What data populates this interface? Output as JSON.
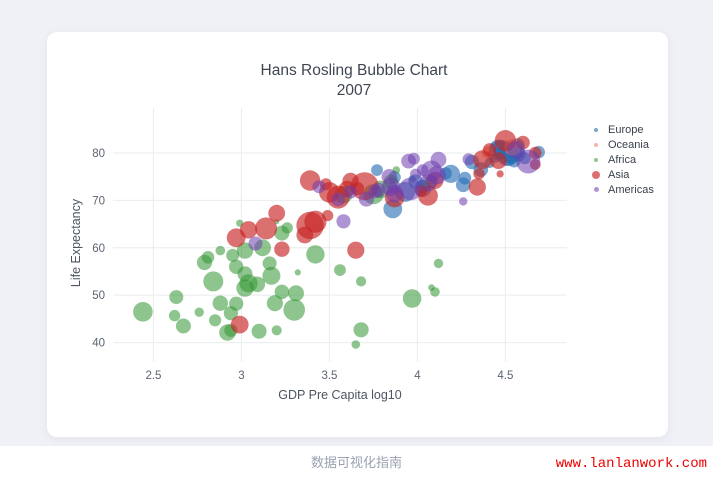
{
  "page": {
    "caption": "数据可视化指南",
    "watermark": "www.lanlanwork.com"
  },
  "chart_data": {
    "type": "scatter",
    "variant": "bubble",
    "title": "Hans Rosling Bubble Chart",
    "subtitle": "2007",
    "xlabel": "GDP Pre Capita log10",
    "ylabel": "Life Expectancy",
    "xlim": [
      2.27,
      4.85
    ],
    "ylim": [
      35.9,
      89.5
    ],
    "xticks": [
      2.5,
      3,
      3.5,
      4,
      4.5
    ],
    "yticks": [
      40,
      50,
      60,
      70,
      80
    ],
    "grid": true,
    "legend_position": "right",
    "point_format": [
      "gdp_per_capita_log10",
      "life_expectancy",
      "bubble_radius_px"
    ],
    "series": [
      {
        "name": "Europe",
        "color": "rgba(40,110,180,0.62)",
        "legend_r": 2,
        "points": [
          [
            4.51,
            79.4,
            10.1
          ],
          [
            3.93,
            71.8,
            10.0
          ],
          [
            4.48,
            80.7,
            9.7
          ],
          [
            4.52,
            79.4,
            9.7
          ],
          [
            4.46,
            80.5,
            9.7
          ],
          [
            4.46,
            80.9,
            9.2
          ],
          [
            3.86,
            68.2,
            9.4
          ],
          [
            4.19,
            75.6,
            9.1
          ],
          [
            4.03,
            72.5,
            8.4
          ],
          [
            4.57,
            79.8,
            8.0
          ],
          [
            4.44,
            79.5,
            7.4
          ],
          [
            4.31,
            78.1,
            7.3
          ],
          [
            4.53,
            79.4,
            7.3
          ],
          [
            4.36,
            76.5,
            7.3
          ],
          [
            3.99,
            74.0,
            7.3
          ],
          [
            4.26,
            73.3,
            7.3
          ],
          [
            4.53,
            80.9,
            7.1
          ],
          [
            4.56,
            79.8,
            7.0
          ],
          [
            4.57,
            81.7,
            6.9
          ],
          [
            4.03,
            73.0,
            6.8
          ],
          [
            4.55,
            78.3,
            6.4
          ],
          [
            4.27,
            74.7,
            6.4
          ],
          [
            4.52,
            79.3,
            6.4
          ],
          [
            4.69,
            80.2,
            6.2
          ],
          [
            3.87,
            74.9,
            6.2
          ],
          [
            4.16,
            75.7,
            6.2
          ],
          [
            4.61,
            78.9,
            6.0
          ],
          [
            3.77,
            76.4,
            5.9
          ],
          [
            4.41,
            77.9,
            5.1
          ],
          [
            3.97,
            74.5,
            3.6
          ],
          [
            4.56,
            81.8,
            2.5
          ]
        ]
      },
      {
        "name": "Oceania",
        "color": "rgba(240,130,100,0.6)",
        "legend_r": 2,
        "points": [
          [
            4.54,
            81.2,
            8.2
          ],
          [
            4.4,
            80.2,
            6.0
          ]
        ]
      },
      {
        "name": "Africa",
        "color": "rgba(50,150,50,0.55)",
        "legend_r": 2,
        "points": [
          [
            3.3,
            46.9,
            10.8
          ],
          [
            3.75,
            71.3,
            10.1
          ],
          [
            2.84,
            52.9,
            10.0
          ],
          [
            2.44,
            46.5,
            9.8
          ],
          [
            3.97,
            49.3,
            9.3
          ],
          [
            3.42,
            58.6,
            9.2
          ],
          [
            3.04,
            52.5,
            9.1
          ],
          [
            3.17,
            54.1,
            9.0
          ],
          [
            3.58,
            71.2,
            8.9
          ],
          [
            3.79,
            72.3,
            8.9
          ],
          [
            3.02,
            51.5,
            8.7
          ],
          [
            3.12,
            60.0,
            8.4
          ],
          [
            2.92,
            42.1,
            8.2
          ],
          [
            3.02,
            59.4,
            8.2
          ],
          [
            3.19,
            48.3,
            8.1
          ],
          [
            3.31,
            50.4,
            8.0
          ],
          [
            3.09,
            52.3,
            7.8
          ],
          [
            2.88,
            48.3,
            7.7
          ],
          [
            2.79,
            56.9,
            7.6
          ],
          [
            3.23,
            63.1,
            7.5
          ],
          [
            3.68,
            42.7,
            7.6
          ],
          [
            2.67,
            43.5,
            7.5
          ],
          [
            3.02,
            54.5,
            7.5
          ],
          [
            3.1,
            42.4,
            7.5
          ],
          [
            3.85,
            73.9,
            7.3
          ],
          [
            3.23,
            50.7,
            7.3
          ],
          [
            2.97,
            56.0,
            7.2
          ],
          [
            2.94,
            46.2,
            7.1
          ],
          [
            2.97,
            48.2,
            7.1
          ],
          [
            3.16,
            56.7,
            7.0
          ],
          [
            2.63,
            49.6,
            7.0
          ],
          [
            4.08,
            74.0,
            6.6
          ],
          [
            2.94,
            42.6,
            6.6
          ],
          [
            2.95,
            58.4,
            6.5
          ],
          [
            2.81,
            58.0,
            6.3
          ],
          [
            2.85,
            44.7,
            6.1
          ],
          [
            3.56,
            55.3,
            5.9
          ],
          [
            2.62,
            45.7,
            5.7
          ],
          [
            3.26,
            64.2,
            5.7
          ],
          [
            3.68,
            52.9,
            5.1
          ],
          [
            3.2,
            42.6,
            5.1
          ],
          [
            4.1,
            50.7,
            4.8
          ],
          [
            4.12,
            56.7,
            4.7
          ],
          [
            2.76,
            46.4,
            4.7
          ],
          [
            2.88,
            59.4,
            4.8
          ],
          [
            4.04,
            72.8,
            4.5
          ],
          [
            3.65,
            39.6,
            4.3
          ],
          [
            3.32,
            54.8,
            3.1
          ],
          [
            4.08,
            51.6,
            3.3
          ],
          [
            2.99,
            65.2,
            3.6
          ],
          [
            3.88,
            76.4,
            3.8
          ],
          [
            3.2,
            65.5,
            2.5
          ]
        ]
      },
      {
        "name": "Asia",
        "color": "rgba(200,35,35,0.65)",
        "legend_r": 4,
        "points": [
          [
            3.7,
            73.0,
            14.0
          ],
          [
            3.39,
            64.7,
            13.7
          ],
          [
            3.55,
            70.7,
            11.5
          ],
          [
            3.42,
            65.5,
            11.1
          ],
          [
            3.14,
            64.1,
            11.0
          ],
          [
            4.5,
            82.6,
            10.7
          ],
          [
            3.5,
            71.7,
            10.3
          ],
          [
            3.39,
            74.2,
            10.2
          ],
          [
            4.06,
            71.0,
            9.9
          ],
          [
            3.87,
            70.6,
            9.8
          ],
          [
            2.97,
            62.1,
            9.4
          ],
          [
            4.37,
            78.6,
            9.4
          ],
          [
            3.65,
            59.5,
            8.6
          ],
          [
            2.99,
            43.8,
            8.9
          ],
          [
            3.04,
            63.8,
            8.7
          ],
          [
            4.1,
            74.2,
            8.5
          ],
          [
            4.34,
            72.8,
            8.6
          ],
          [
            3.2,
            67.3,
            8.4
          ],
          [
            4.46,
            78.4,
            8.4
          ],
          [
            3.6,
            72.4,
            8.2
          ],
          [
            3.36,
            62.7,
            8.4
          ],
          [
            3.62,
            74.1,
            8.2
          ],
          [
            3.23,
            59.7,
            7.7
          ],
          [
            4.6,
            82.2,
            6.8
          ],
          [
            4.41,
            80.7,
            6.6
          ],
          [
            3.66,
            72.5,
            6.6
          ],
          [
            4.02,
            72.0,
            6.0
          ],
          [
            4.67,
            80.0,
            6.2
          ],
          [
            4.35,
            75.6,
            5.7
          ],
          [
            4.67,
            77.6,
            5.4
          ],
          [
            3.49,
            66.8,
            5.6
          ],
          [
            3.48,
            73.4,
            6.0
          ],
          [
            4.47,
            75.6,
            3.6
          ]
        ]
      },
      {
        "name": "Americas",
        "color": "rgba(110,60,175,0.55)",
        "legend_r": 2.5,
        "points": [
          [
            4.63,
            78.2,
            12.0
          ],
          [
            3.96,
            72.4,
            11.3
          ],
          [
            4.08,
            76.2,
            10.5
          ],
          [
            3.85,
            72.9,
            9.3
          ],
          [
            4.11,
            75.3,
            9.2
          ],
          [
            4.56,
            80.7,
            8.9
          ],
          [
            3.87,
            71.4,
            8.7
          ],
          [
            4.06,
            73.7,
            8.6
          ],
          [
            4.12,
            78.6,
            7.9
          ],
          [
            3.84,
            75.0,
            7.7
          ],
          [
            3.71,
            70.3,
            7.6
          ],
          [
            3.95,
            78.3,
            7.4
          ],
          [
            3.78,
            72.2,
            7.2
          ],
          [
            3.58,
            65.6,
            7.1
          ],
          [
            3.08,
            60.9,
            7.0
          ],
          [
            3.55,
            70.2,
            6.9
          ],
          [
            3.76,
            71.9,
            6.8
          ],
          [
            3.62,
            71.8,
            6.7
          ],
          [
            3.44,
            72.9,
            6.5
          ],
          [
            3.98,
            78.8,
            6.0
          ],
          [
            4.29,
            78.7,
            6.0
          ],
          [
            4.03,
            76.4,
            5.8
          ],
          [
            3.99,
            75.5,
            5.7
          ],
          [
            3.86,
            72.6,
            5.5
          ],
          [
            4.26,
            69.8,
            4.2
          ]
        ]
      }
    ]
  }
}
